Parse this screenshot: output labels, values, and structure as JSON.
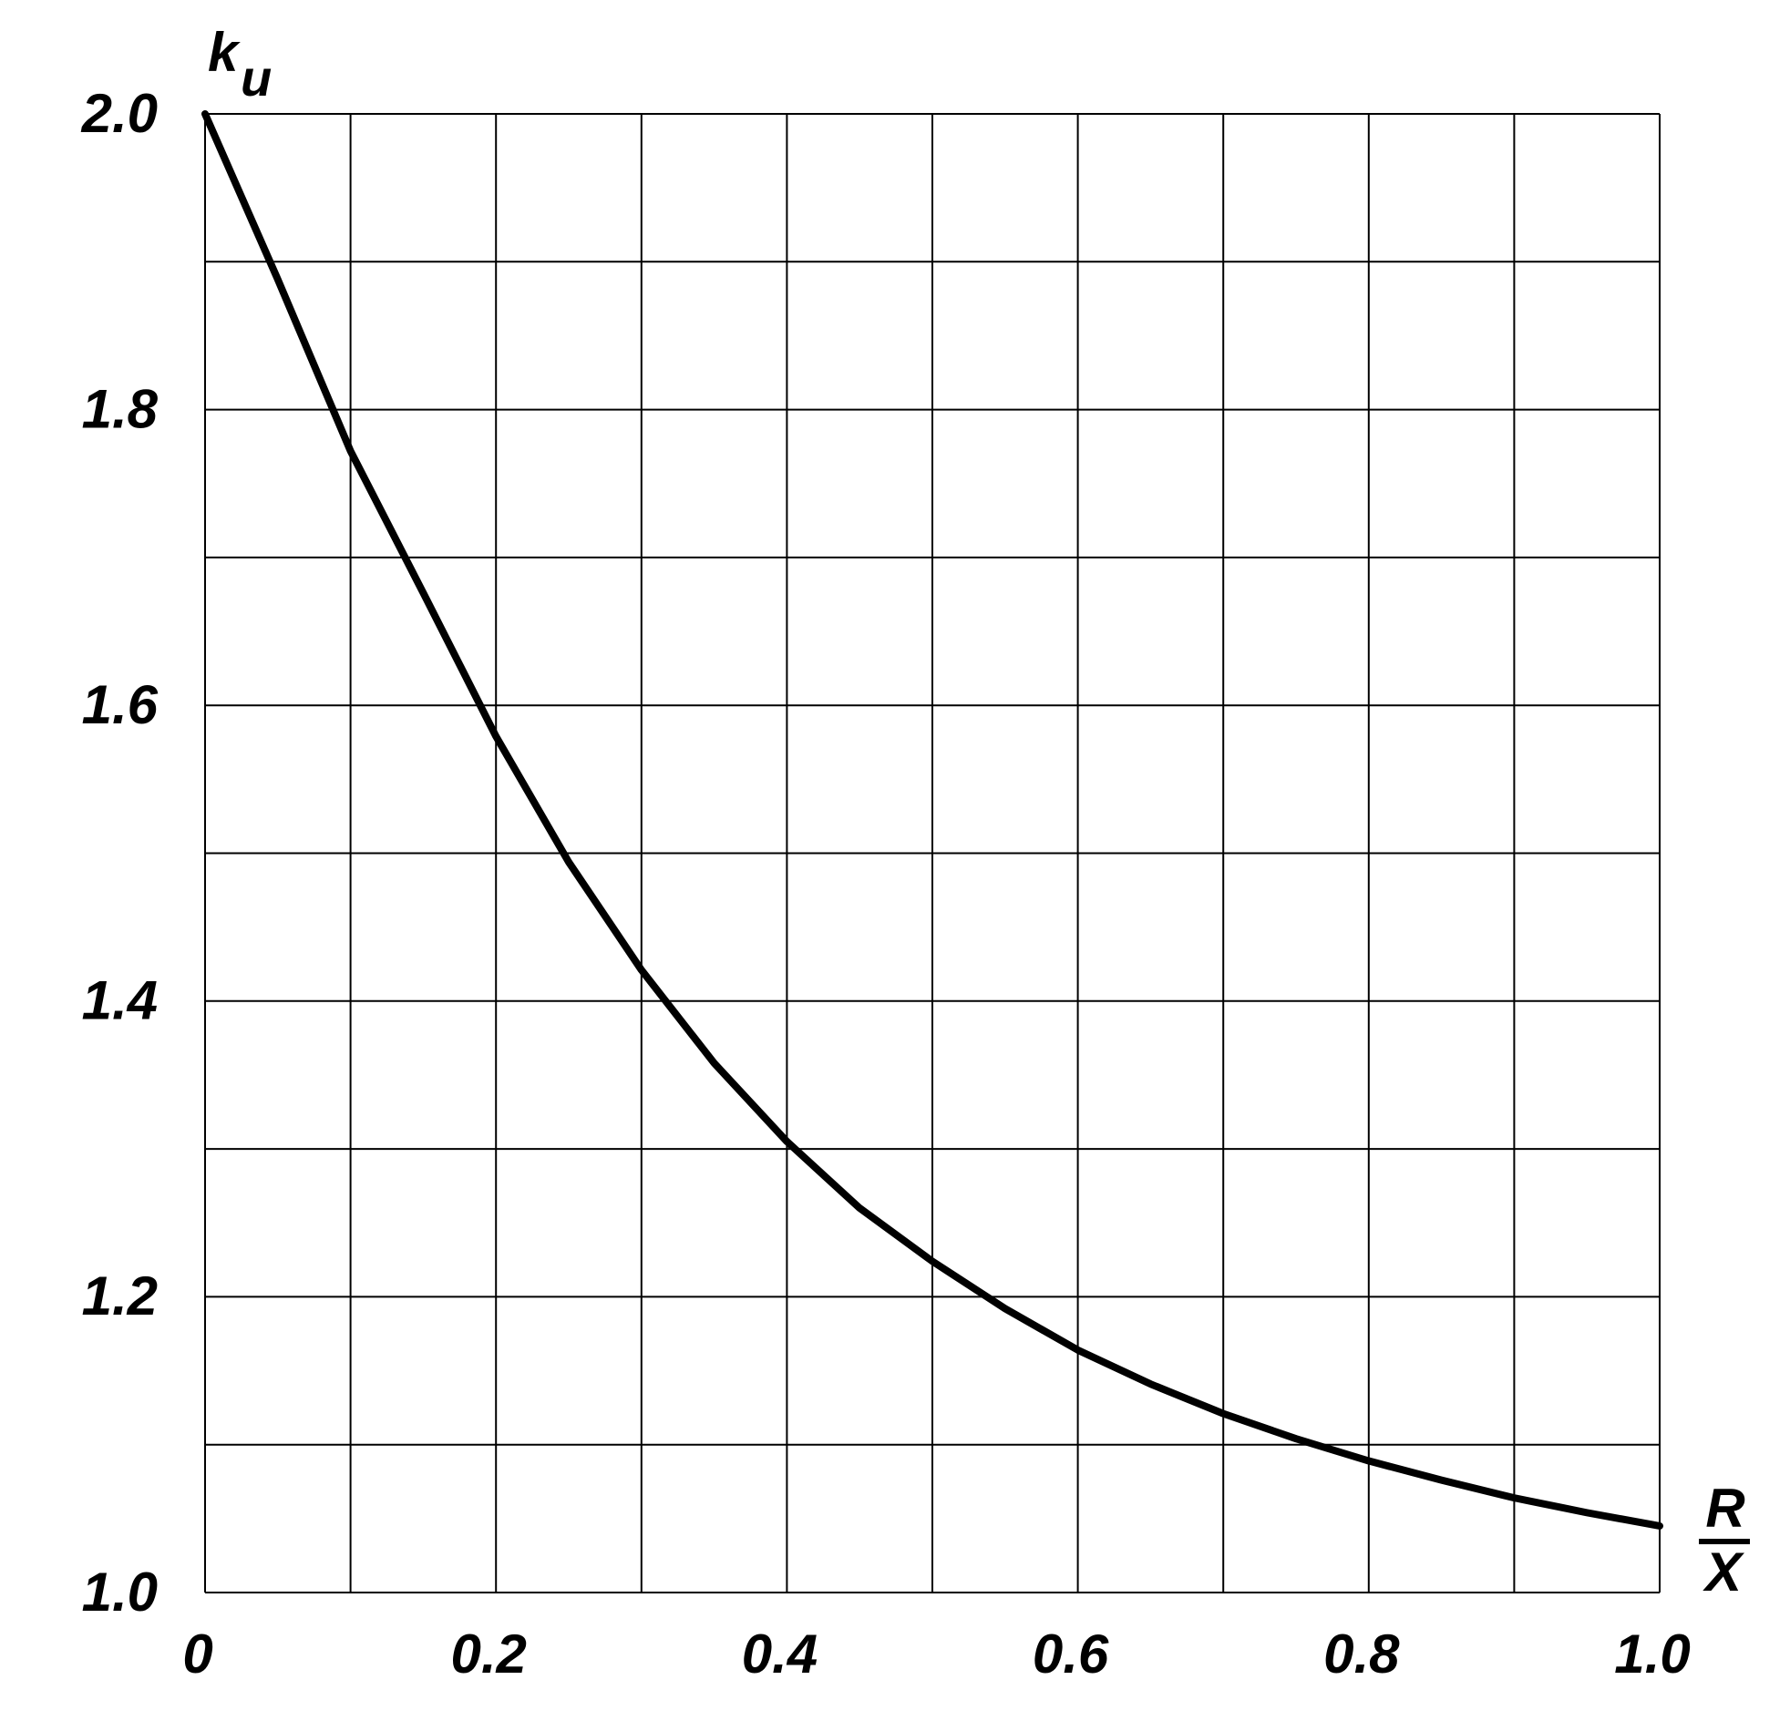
{
  "chart_data": {
    "type": "line",
    "ylabel": "k",
    "ylabel_subscript": "u",
    "xlabel_numerator": "R",
    "xlabel_denominator": "X",
    "x": [
      0,
      0.05,
      0.1,
      0.15,
      0.2,
      0.25,
      0.3,
      0.35,
      0.4,
      0.45,
      0.5,
      0.55,
      0.6,
      0.65,
      0.7,
      0.75,
      0.8,
      0.85,
      0.9,
      0.95,
      1.0
    ],
    "series": [
      {
        "name": "k_u",
        "color": "#000000",
        "values": [
          2.0,
          1.888,
          1.772,
          1.676,
          1.579,
          1.494,
          1.421,
          1.358,
          1.305,
          1.26,
          1.224,
          1.192,
          1.164,
          1.141,
          1.121,
          1.104,
          1.089,
          1.076,
          1.064,
          1.054,
          1.045
        ]
      }
    ],
    "xlim": [
      0,
      1.0
    ],
    "ylim": [
      1.0,
      2.0
    ],
    "xticks": [
      0,
      0.2,
      0.4,
      0.6,
      0.8,
      {
        "value": 1.0,
        "label": "1.0"
      }
    ],
    "yticks": [
      {
        "value": 1.0,
        "label": "1.0"
      },
      1.2,
      1.4,
      1.6,
      1.8,
      {
        "value": 2.0,
        "label": "2.0"
      }
    ],
    "minor_xticks": [
      0.1,
      0.3,
      0.5,
      0.7,
      0.9
    ],
    "minor_yticks": [
      1.1,
      1.3,
      1.5,
      1.7,
      1.9
    ],
    "grid": true
  }
}
